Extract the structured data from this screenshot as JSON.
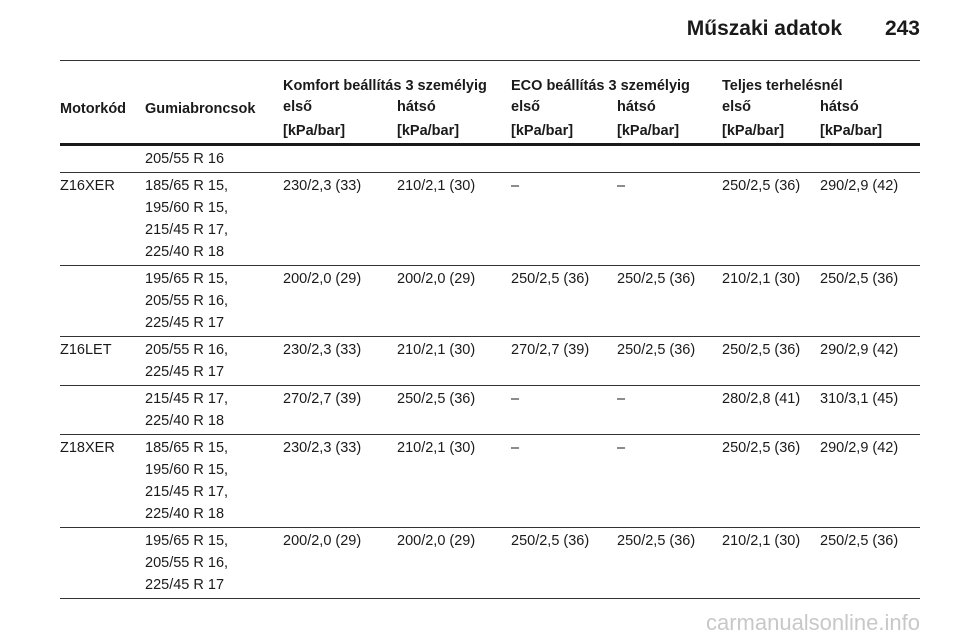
{
  "header": {
    "title": "Műszaki adatok",
    "page_number": "243"
  },
  "table": {
    "columns": {
      "engine": "Motorkód",
      "tires": "Gumiabroncsok"
    },
    "groups": [
      {
        "title": "Komfort beállítás 3 személyig",
        "front": "első",
        "rear": "hátsó",
        "front_unit": "[kPa/bar]",
        "rear_unit": "[kPa/bar]"
      },
      {
        "title": "ECO beállítás 3 személyig",
        "front": "első",
        "rear": "hátsó",
        "front_unit": "[kPa/bar]",
        "rear_unit": "[kPa/bar]"
      },
      {
        "title": "Teljes terhelésnél",
        "front": "első",
        "rear": "hátsó",
        "front_unit": "[kPa/bar]",
        "rear_unit": "[kPa/bar]"
      }
    ],
    "rows": [
      {
        "tires": [
          "205/55 R 16"
        ],
        "values": []
      },
      {
        "engine": "Z16XER",
        "tires": [
          "185/65 R 15,",
          "195/60 R 15,",
          "215/45 R 17,",
          "225/40 R 18"
        ],
        "values": [
          "230/2,3 (33)",
          "210/2,1 (30)",
          "–",
          "–",
          "250/2,5 (36)",
          "290/2,9 (42)"
        ]
      },
      {
        "tires": [
          "195/65 R 15,",
          "205/55 R 16,",
          "225/45 R 17"
        ],
        "values": [
          "200/2,0 (29)",
          "200/2,0 (29)",
          "250/2,5 (36)",
          "250/2,5 (36)",
          "210/2,1 (30)",
          "250/2,5 (36)"
        ]
      },
      {
        "engine": "Z16LET",
        "tires": [
          "205/55 R 16,",
          "225/45 R 17"
        ],
        "values": [
          "230/2,3 (33)",
          "210/2,1 (30)",
          "270/2,7 (39)",
          "250/2,5 (36)",
          "250/2,5 (36)",
          "290/2,9 (42)"
        ]
      },
      {
        "tires": [
          "215/45 R 17,",
          "225/40 R 18"
        ],
        "values": [
          "270/2,7 (39)",
          "250/2,5 (36)",
          "–",
          "–",
          "280/2,8 (41)",
          "310/3,1 (45)"
        ]
      },
      {
        "engine": "Z18XER",
        "tires": [
          "185/65 R 15,",
          "195/60 R 15,",
          "215/45 R 17,",
          "225/40 R 18"
        ],
        "values": [
          "230/2,3 (33)",
          "210/2,1 (30)",
          "–",
          "–",
          "250/2,5 (36)",
          "290/2,9 (42)"
        ]
      },
      {
        "tires": [
          "195/65 R 15,",
          "205/55 R 16,",
          "225/45 R 17"
        ],
        "values": [
          "200/2,0 (29)",
          "200/2,0 (29)",
          "250/2,5 (36)",
          "250/2,5 (36)",
          "210/2,1 (30)",
          "250/2,5 (36)"
        ]
      }
    ]
  },
  "footer": {
    "watermark": "carmanualsonline.info"
  }
}
